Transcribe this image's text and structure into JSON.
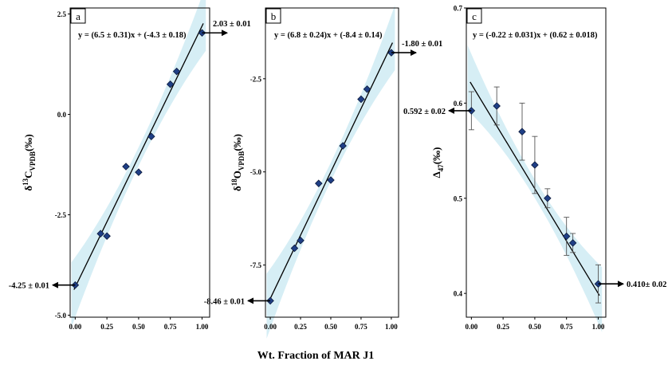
{
  "xlabel": "Wt. Fraction of MAR J1",
  "colors": {
    "band": "#d6eef5",
    "marker": "#1f3f86",
    "line": "#000000"
  },
  "chart_data": [
    {
      "type": "scatter",
      "panel": "a",
      "ylabel_main": "δ",
      "ylabel_sup": "13",
      "ylabel_mid": "C",
      "ylabel_sub": "VPDB",
      "ylabel_unit": "(‰)",
      "equation": "y = (6.5 ± 0.31)x + (-4.3 ± 0.18)",
      "xlim": [
        -0.04,
        1.06
      ],
      "ylim": [
        -5.05,
        2.65
      ],
      "xticks": [
        0.0,
        0.25,
        0.5,
        0.75,
        1.0
      ],
      "xtick_labels": [
        "0.00",
        "0.25",
        "0.50",
        "0.75",
        "1.00"
      ],
      "yticks": [
        -5.0,
        -2.5,
        0.0,
        2.5
      ],
      "ytick_labels": [
        "-5.0",
        "-2.5",
        "0.0",
        "2.5"
      ],
      "x": [
        0.0,
        0.2,
        0.25,
        0.4,
        0.5,
        0.6,
        0.75,
        0.8,
        1.0
      ],
      "y": [
        -4.25,
        -2.97,
        -3.03,
        -1.3,
        -1.44,
        -0.55,
        0.75,
        1.07,
        2.03
      ],
      "fit": {
        "slope": 6.5,
        "intercept": -4.3
      },
      "annotations": [
        {
          "text": "-4.25 ± 0.01",
          "x": 0.0,
          "y": -4.25,
          "side": "left"
        },
        {
          "text": "2.03 ± 0.01",
          "x": 1.0,
          "y": 2.03,
          "side": "right"
        }
      ]
    },
    {
      "type": "scatter",
      "panel": "b",
      "ylabel_main": "δ",
      "ylabel_sup": "18",
      "ylabel_mid": "O",
      "ylabel_sub": "VPDB",
      "ylabel_unit": "(‰)",
      "equation": "y = (6.8 ± 0.24)x + (-8.4 ± 0.14)",
      "xlim": [
        -0.04,
        1.06
      ],
      "ylim": [
        -8.9,
        -0.6
      ],
      "xticks": [
        0.0,
        0.25,
        0.5,
        0.75,
        1.0
      ],
      "xtick_labels": [
        "0.00",
        "0.25",
        "0.50",
        "0.75",
        "1.00"
      ],
      "yticks": [
        -7.5,
        -5.0,
        -2.5
      ],
      "ytick_labels": [
        "-7.5",
        "-5.0",
        "-2.5"
      ],
      "x": [
        0.0,
        0.2,
        0.25,
        0.4,
        0.5,
        0.6,
        0.75,
        0.8,
        1.0
      ],
      "y": [
        -8.46,
        -7.05,
        -6.84,
        -5.31,
        -5.22,
        -4.3,
        -3.05,
        -2.78,
        -1.8
      ],
      "fit": {
        "slope": 6.8,
        "intercept": -8.4
      },
      "annotations": [
        {
          "text": "-8.46 ± 0.01",
          "x": 0.0,
          "y": -8.46,
          "side": "left"
        },
        {
          "text": "-1.80 ± 0.01",
          "x": 1.0,
          "y": -1.8,
          "side": "right"
        }
      ]
    },
    {
      "type": "scatter",
      "panel": "c",
      "ylabel_main": "Δ",
      "ylabel_sup": "",
      "ylabel_mid": "",
      "ylabel_sub": "47",
      "ylabel_unit": "(‰)",
      "equation": "y = (-0.22 ± 0.031)x + (0.62 ± 0.018)",
      "xlim": [
        -0.04,
        1.06
      ],
      "ylim": [
        0.375,
        0.7
      ],
      "xticks": [
        0.0,
        0.25,
        0.5,
        0.75,
        1.0
      ],
      "xtick_labels": [
        "0.00",
        "0.25",
        "0.50",
        "0.75",
        "1.00"
      ],
      "yticks": [
        0.4,
        0.5,
        0.6,
        0.7
      ],
      "ytick_labels": [
        "0.4",
        "0.5",
        "0.6",
        "0.7"
      ],
      "x": [
        0.0,
        0.2,
        0.4,
        0.5,
        0.6,
        0.75,
        0.8,
        1.0
      ],
      "y": [
        0.592,
        0.597,
        0.57,
        0.535,
        0.5,
        0.46,
        0.453,
        0.41
      ],
      "yerr": [
        0.02,
        0.02,
        0.03,
        0.03,
        0.01,
        0.02,
        0.01,
        0.02
      ],
      "fit": {
        "slope": -0.22,
        "intercept": 0.62
      },
      "annotations": [
        {
          "text": "0.592 ± 0.02",
          "x": 0.0,
          "y": 0.592,
          "side": "left"
        },
        {
          "text": "0.410± 0.02",
          "x": 1.0,
          "y": 0.41,
          "side": "right"
        }
      ]
    }
  ]
}
